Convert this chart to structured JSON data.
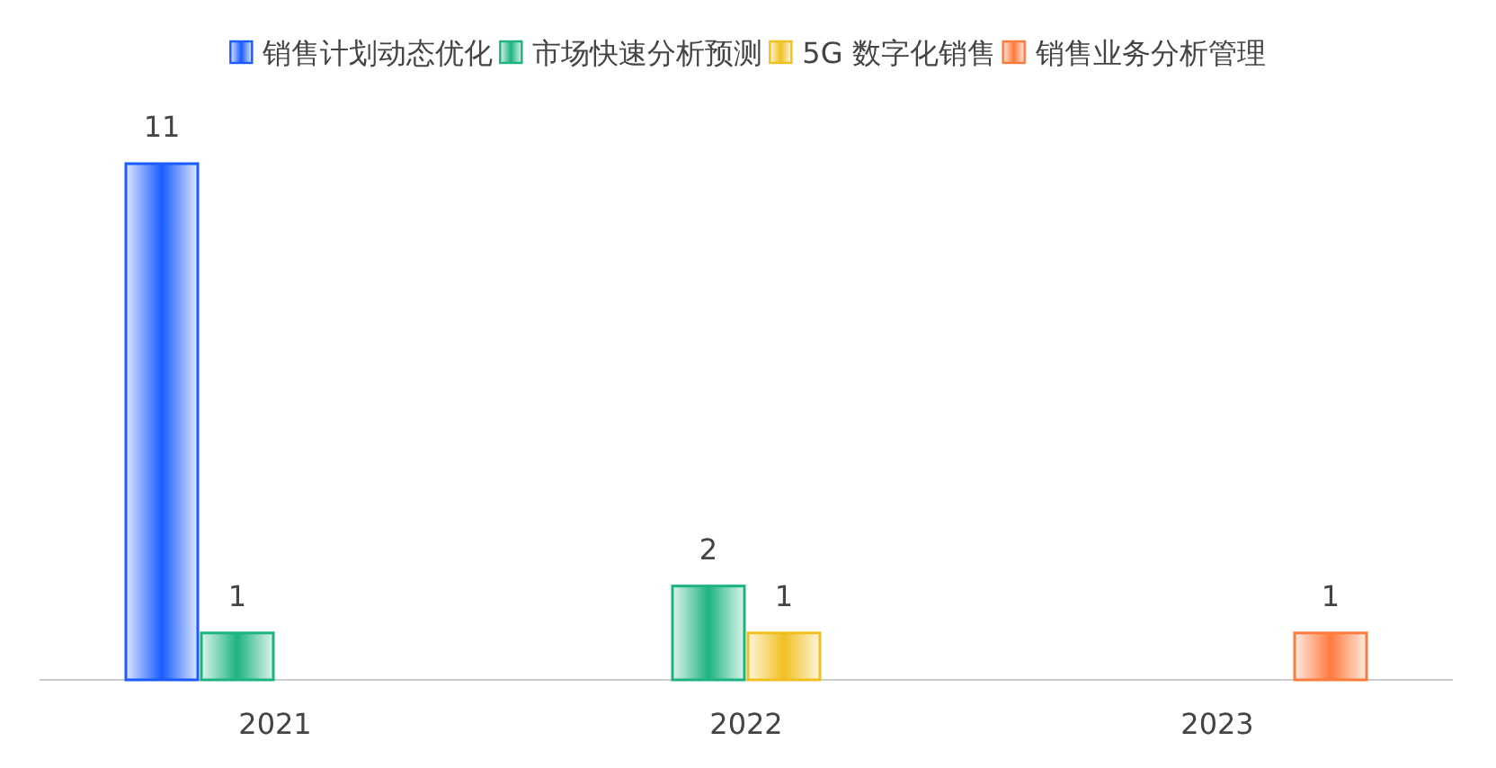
{
  "chart_data": {
    "type": "bar",
    "categories": [
      "2021",
      "2022",
      "2023"
    ],
    "series": [
      {
        "name": "销售计划动态优化",
        "color": "#1a5cff",
        "values": [
          11,
          null,
          null
        ]
      },
      {
        "name": "市场快速分析预测",
        "color": "#1db37e",
        "values": [
          1,
          2,
          null
        ]
      },
      {
        "name": "5G 数字化销售",
        "color": "#f0c020",
        "values": [
          null,
          1,
          null
        ]
      },
      {
        "name": "销售业务分析管理",
        "color": "#ff7a3d",
        "values": [
          null,
          null,
          1
        ]
      }
    ],
    "data_labels": true,
    "legend": "top"
  }
}
